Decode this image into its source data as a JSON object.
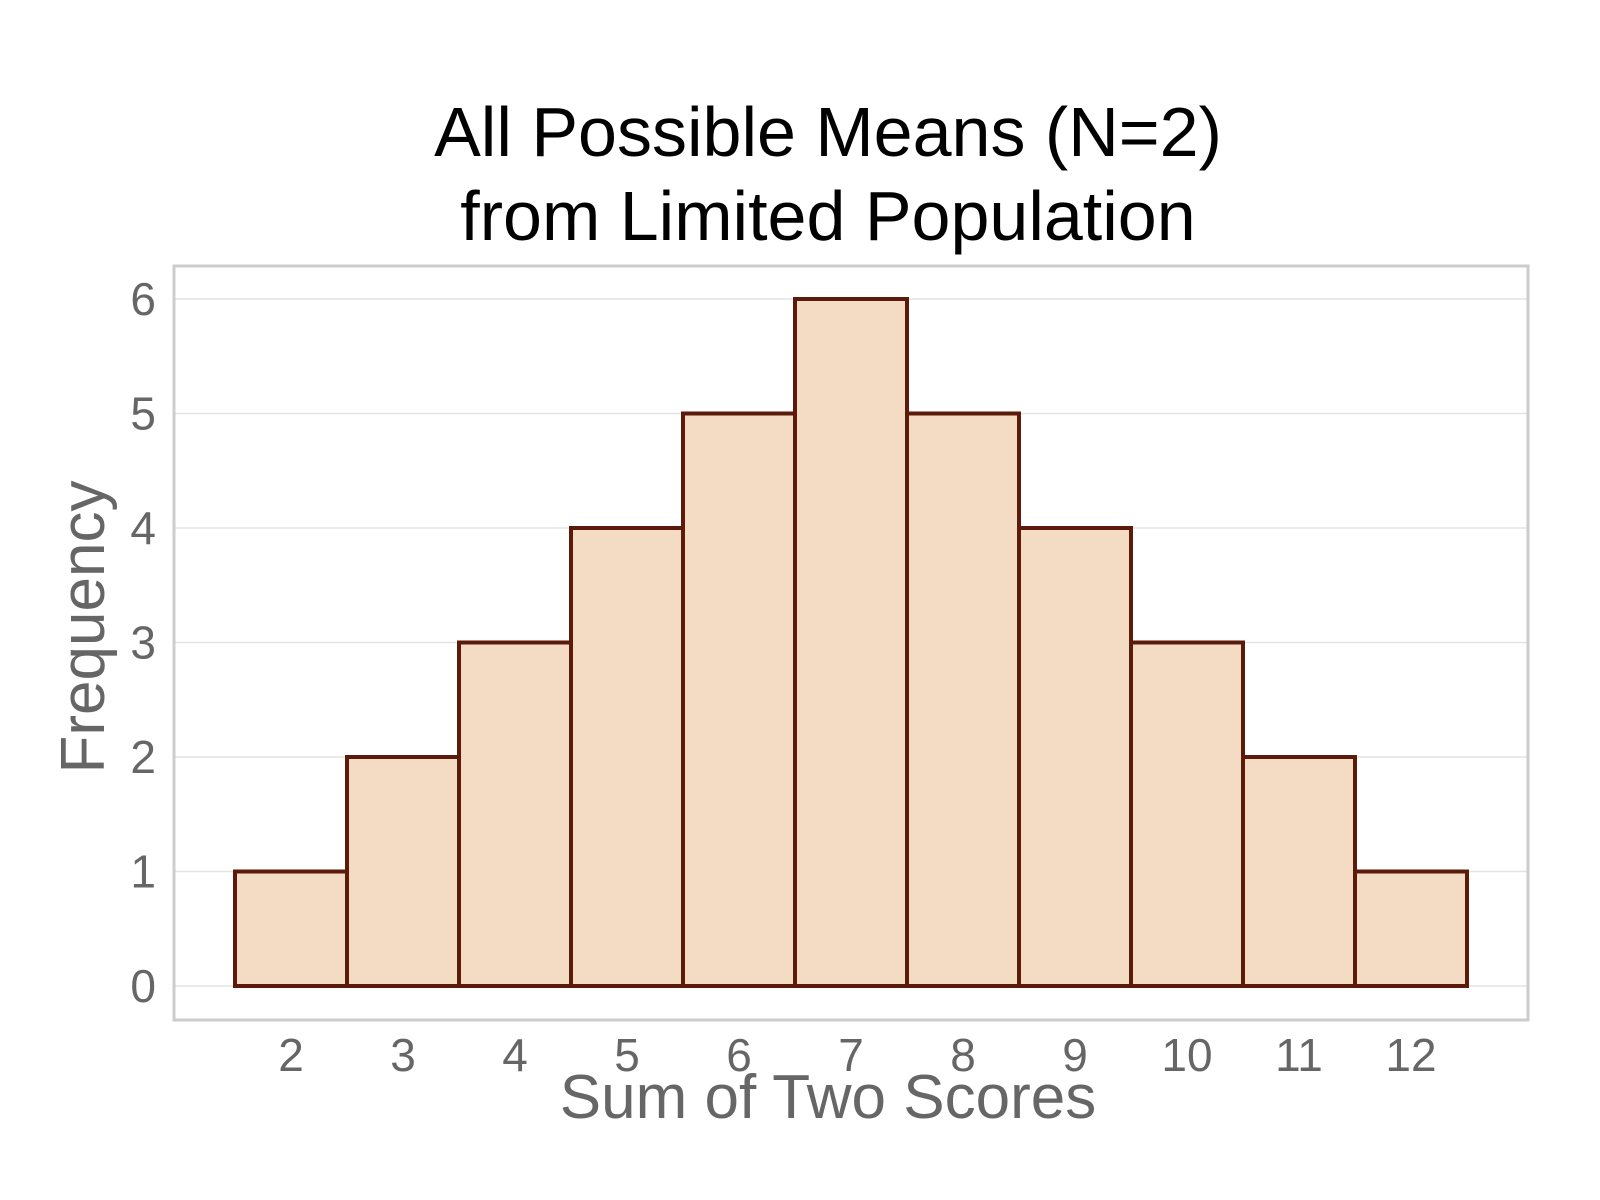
{
  "chart_data": {
    "type": "bar",
    "title": [
      "All Possible Means (N=2)",
      "from Limited Population"
    ],
    "xlabel": "Sum of Two Scores",
    "ylabel": "Frequency",
    "categories": [
      "2",
      "3",
      "4",
      "5",
      "6",
      "7",
      "8",
      "9",
      "10",
      "11",
      "12"
    ],
    "values": [
      1,
      2,
      3,
      4,
      5,
      6,
      5,
      4,
      3,
      2,
      1
    ],
    "ylim": [
      0,
      6
    ],
    "yticks": [
      "0",
      "1",
      "2",
      "3",
      "4",
      "5",
      "6"
    ],
    "grid": true,
    "colors": {
      "bar_fill": "#f4dcc4",
      "bar_stroke": "#5c1a0a",
      "gridline": "#e3e3e3",
      "panel_border": "#cccccc"
    }
  }
}
